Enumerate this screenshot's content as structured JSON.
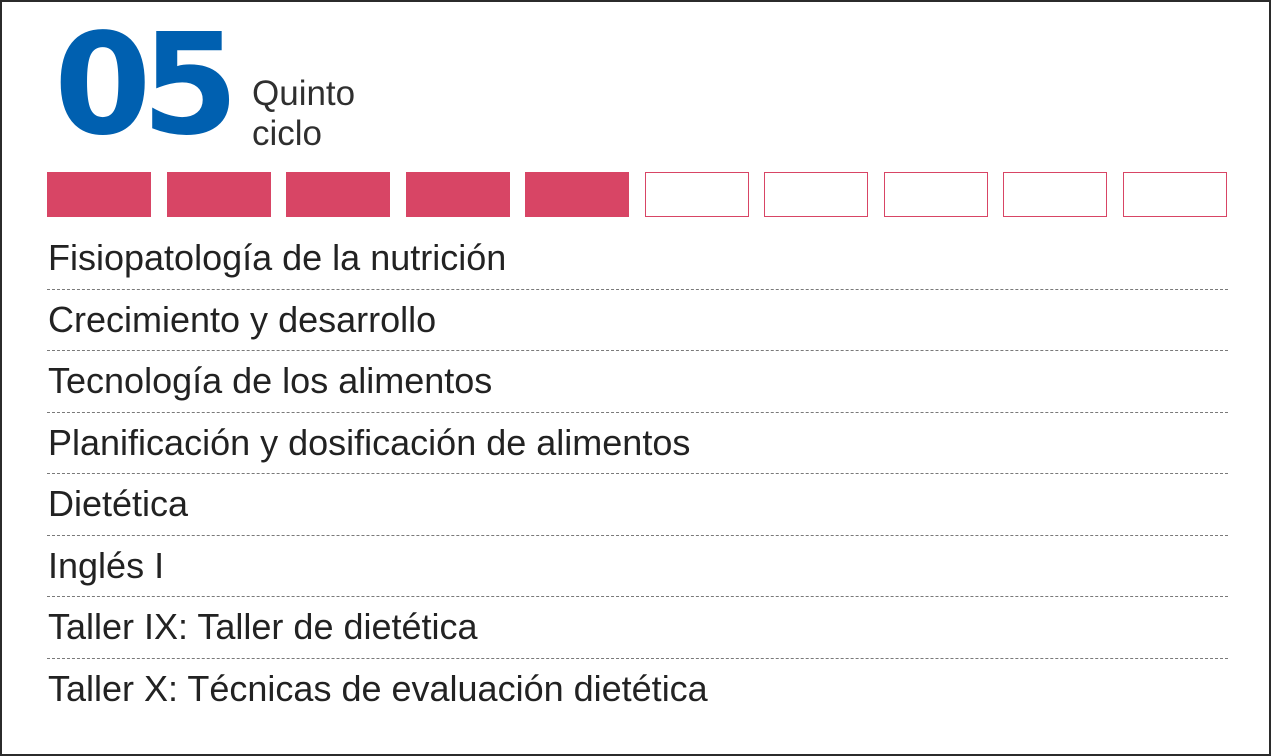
{
  "header": {
    "number": "05",
    "title_line1": "Quinto",
    "title_line2": "ciclo"
  },
  "progress": {
    "total_segments": 10,
    "completed_segments": 5,
    "color": "#d84565"
  },
  "courses": [
    "Fisiopatología de la nutrición",
    "Crecimiento y desarrollo",
    "Tecnología de los alimentos",
    "Planificación y dosificación de alimentos",
    "Dietética",
    "Inglés I",
    "Taller IX: Taller de dietética",
    "Taller X: Técnicas de evaluación dietética"
  ],
  "colors": {
    "number": "#0060b0",
    "accent": "#d84565",
    "text": "#222222"
  }
}
